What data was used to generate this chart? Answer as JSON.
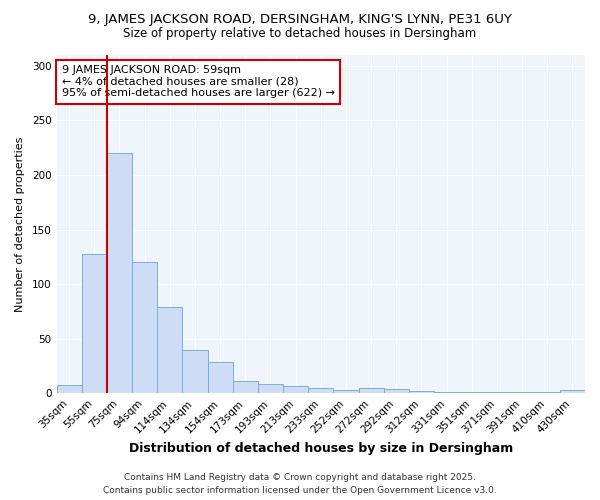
{
  "title": "9, JAMES JACKSON ROAD, DERSINGHAM, KING'S LYNN, PE31 6UY",
  "subtitle": "Size of property relative to detached houses in Dersingham",
  "xlabel": "Distribution of detached houses by size in Dersingham",
  "ylabel": "Number of detached properties",
  "categories": [
    "35sqm",
    "55sqm",
    "75sqm",
    "94sqm",
    "114sqm",
    "134sqm",
    "154sqm",
    "173sqm",
    "193sqm",
    "213sqm",
    "233sqm",
    "252sqm",
    "272sqm",
    "292sqm",
    "312sqm",
    "331sqm",
    "351sqm",
    "371sqm",
    "391sqm",
    "410sqm",
    "430sqm"
  ],
  "values": [
    8,
    128,
    220,
    120,
    79,
    40,
    29,
    11,
    9,
    7,
    5,
    3,
    5,
    4,
    2,
    1,
    1,
    1,
    1,
    1,
    3
  ],
  "bar_color": "#ccddf5",
  "bar_edge_color": "#7aaed6",
  "vline_color": "#cc0000",
  "vline_x": 1.5,
  "annotation_text": "9 JAMES JACKSON ROAD: 59sqm\n← 4% of detached houses are smaller (28)\n95% of semi-detached houses are larger (622) →",
  "annotation_box_color": "white",
  "annotation_box_edge": "#cc0000",
  "ylim": [
    0,
    310
  ],
  "yticks": [
    0,
    50,
    100,
    150,
    200,
    250,
    300
  ],
  "plot_bg_color": "#f0f4fb",
  "fig_bg_color": "#ffffff",
  "grid_color": "#ffffff",
  "footer": "Contains HM Land Registry data © Crown copyright and database right 2025.\nContains public sector information licensed under the Open Government Licence v3.0.",
  "title_fontsize": 9.5,
  "subtitle_fontsize": 8.5,
  "xlabel_fontsize": 9,
  "ylabel_fontsize": 8,
  "tick_fontsize": 7.5,
  "annotation_fontsize": 8,
  "footer_fontsize": 6.5
}
